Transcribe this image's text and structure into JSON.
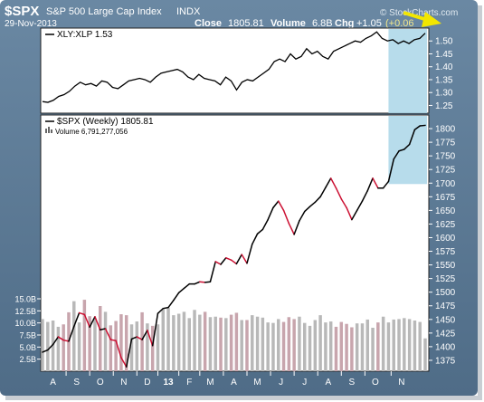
{
  "header": {
    "symbol": "$SPX",
    "name": "S&P 500 Large Cap Index",
    "exchange": "INDX",
    "date": "29-Nov-2013",
    "close_label": "Close",
    "close_value": "1805.81",
    "volume_label": "Volume",
    "volume_value": "6.8B",
    "chg_label": "Chg",
    "chg_value": "+1.05",
    "chg_pct": "(+0.06",
    "watermark": "© StockCharts.com"
  },
  "colors": {
    "frame_bg": "#5d7b96",
    "panel_bg": "#ffffff",
    "up_line": "#000000",
    "down_line": "#cc1133",
    "volume_up": "#b8b8b8",
    "volume_down": "#c8a5ad",
    "highlight": "#aad6e8",
    "arrow": "#f2e600"
  },
  "chart_data": [
    {
      "type": "line",
      "label": "XLY:XLP  1.53",
      "ylim": [
        1.22,
        1.55
      ],
      "y_ticks": [
        "1.50",
        "1.45",
        "1.40",
        "1.35",
        "1.30",
        "1.25"
      ],
      "y_tick_values": [
        1.5,
        1.45,
        1.4,
        1.35,
        1.3,
        1.25
      ],
      "values": [
        1.265,
        1.262,
        1.27,
        1.285,
        1.292,
        1.305,
        1.325,
        1.34,
        1.33,
        1.335,
        1.325,
        1.345,
        1.34,
        1.32,
        1.315,
        1.33,
        1.345,
        1.35,
        1.355,
        1.35,
        1.34,
        1.36,
        1.375,
        1.38,
        1.385,
        1.39,
        1.38,
        1.36,
        1.35,
        1.37,
        1.355,
        1.35,
        1.345,
        1.33,
        1.36,
        1.345,
        1.31,
        1.34,
        1.35,
        1.345,
        1.36,
        1.375,
        1.39,
        1.42,
        1.43,
        1.42,
        1.45,
        1.43,
        1.44,
        1.47,
        1.45,
        1.46,
        1.44,
        1.43,
        1.46,
        1.47,
        1.48,
        1.49,
        1.5,
        1.495,
        1.51,
        1.52,
        1.535,
        1.51,
        1.5,
        1.505,
        1.49,
        1.5,
        1.49,
        1.505,
        1.51,
        1.53
      ]
    },
    {
      "type": "line",
      "label": "$SPX (Weekly) 1805.81",
      "volume_label": "Volume 6,791,277,056",
      "ylim": [
        1355,
        1825
      ],
      "y_ticks": [
        "1800",
        "1775",
        "1750",
        "1725",
        "1700",
        "1675",
        "1650",
        "1625",
        "1600",
        "1575",
        "1550",
        "1525",
        "1500",
        "1475",
        "1450",
        "1425",
        "1400",
        "1375"
      ],
      "y_tick_values": [
        1800,
        1775,
        1750,
        1725,
        1700,
        1675,
        1650,
        1625,
        1600,
        1575,
        1550,
        1525,
        1500,
        1475,
        1450,
        1425,
        1400,
        1375
      ],
      "x_labels": [
        "A",
        "S",
        "O",
        "N",
        "D",
        "13",
        "F",
        "M",
        "A",
        "M",
        "J",
        "J",
        "A",
        "S",
        "O",
        "N"
      ],
      "values": [
        1390,
        1394,
        1404,
        1418,
        1412,
        1410,
        1437,
        1462,
        1459,
        1436,
        1455,
        1431,
        1433,
        1413,
        1411,
        1380,
        1363,
        1414,
        1418,
        1413,
        1430,
        1402,
        1461,
        1470,
        1472,
        1485,
        1499,
        1507,
        1515,
        1515,
        1519,
        1518,
        1519,
        1556,
        1551,
        1563,
        1559,
        1552,
        1569,
        1553,
        1588,
        1607,
        1615,
        1633,
        1655,
        1667,
        1650,
        1626,
        1606,
        1631,
        1648,
        1657,
        1665,
        1675,
        1692,
        1709,
        1691,
        1671,
        1655,
        1633,
        1650,
        1667,
        1686,
        1709,
        1691,
        1691,
        1703,
        1744,
        1759,
        1762,
        1771,
        1798,
        1805,
        1806
      ],
      "volume_ticks": [
        "15.0B",
        "12.5B",
        "10.0B",
        "7.5B",
        "5.0B",
        "2.5B"
      ],
      "volume_tick_values": [
        15,
        12.5,
        10,
        7.5,
        5,
        2.5
      ],
      "volume_ylim": [
        0,
        15
      ],
      "volume_values": [
        10.8,
        10.2,
        10.5,
        9.2,
        9.7,
        12.2,
        14.5,
        10.1,
        14.8,
        11.4,
        10.9,
        13.5,
        12.3,
        9.5,
        10.4,
        11.8,
        11.6,
        9.7,
        10.3,
        12.2,
        9.9,
        9.4,
        9.7,
        12.8,
        13.1,
        11.6,
        11.9,
        12.3,
        11.0,
        12.7,
        11.7,
        12.3,
        11.2,
        11.3,
        11.1,
        11.0,
        11.7,
        12.1,
        10.6,
        10.6,
        11.6,
        11.3,
        11.1,
        10.1,
        10.0,
        10.8,
        10.2,
        11.2,
        10.8,
        11.3,
        10.0,
        9.4,
        10.6,
        11.6,
        10.1,
        10.3,
        9.2,
        10.2,
        9.8,
        9.1,
        9.9,
        9.9,
        10.7,
        9.0,
        10.1,
        11.3,
        10.1,
        10.7,
        10.8,
        11.0,
        10.8,
        10.5,
        10.2,
        6.8
      ]
    }
  ]
}
